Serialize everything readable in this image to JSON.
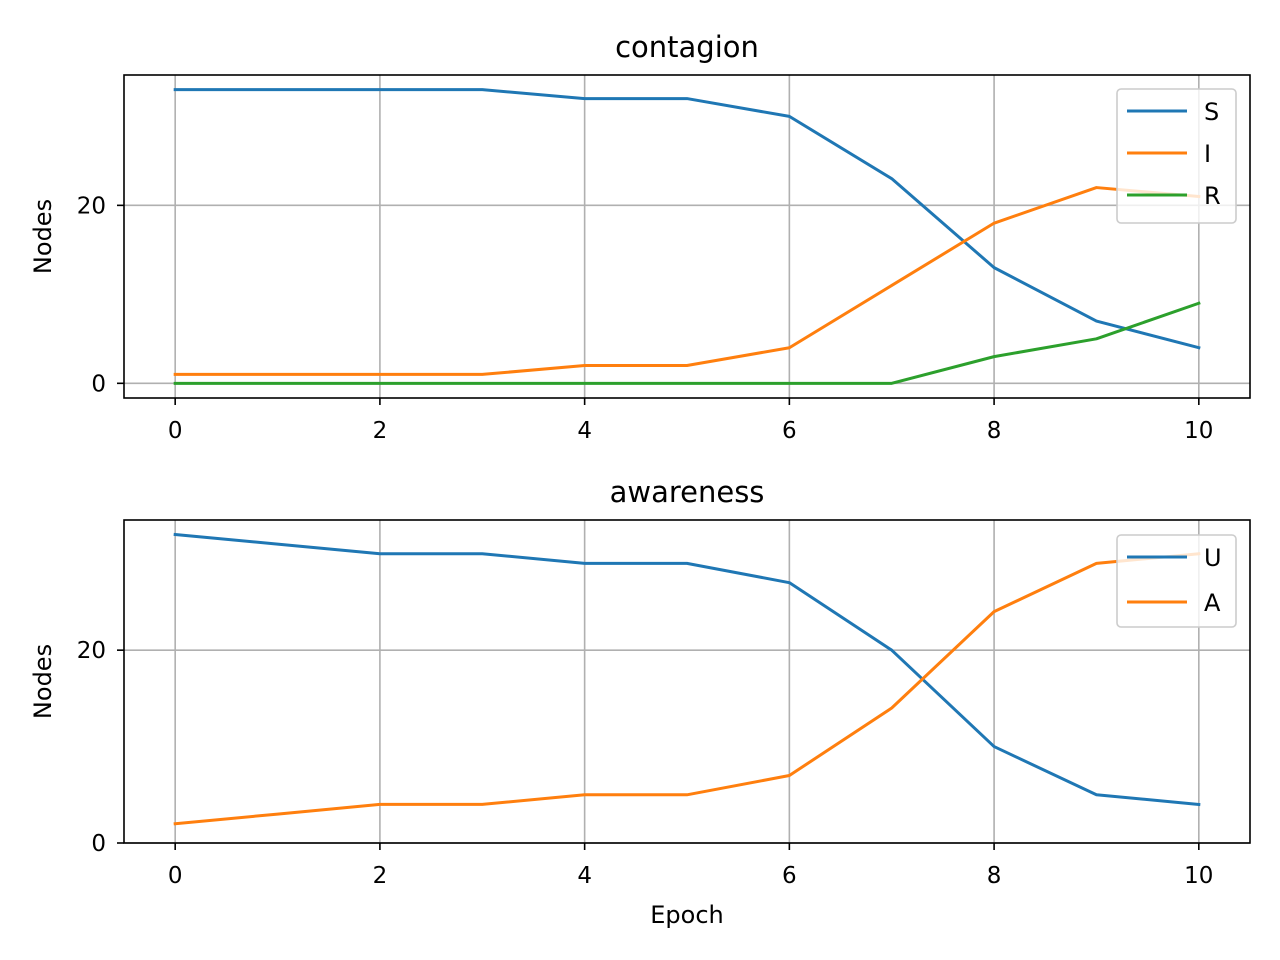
{
  "chart_data": [
    {
      "type": "line",
      "title": "contagion",
      "xlabel": "",
      "ylabel": "Nodes",
      "x": [
        0,
        1,
        2,
        3,
        4,
        5,
        6,
        7,
        8,
        9,
        10
      ],
      "xlim": [
        -0.5,
        10.5
      ],
      "ylim": [
        -1.65,
        34.65
      ],
      "xticks": [
        0,
        2,
        4,
        6,
        8,
        10
      ],
      "yticks": [
        0,
        20
      ],
      "grid": true,
      "legend_position": "upper right",
      "series": [
        {
          "name": "S",
          "color": "#1f77b4",
          "values": [
            33,
            33,
            33,
            33,
            32,
            32,
            30,
            23,
            13,
            7,
            4
          ]
        },
        {
          "name": "I",
          "color": "#ff7f0e",
          "values": [
            1,
            1,
            1,
            1,
            2,
            2,
            4,
            11,
            18,
            22,
            21
          ]
        },
        {
          "name": "R",
          "color": "#2ca02c",
          "values": [
            0,
            0,
            0,
            0,
            0,
            0,
            0,
            0,
            3,
            5,
            9
          ]
        }
      ]
    },
    {
      "type": "line",
      "title": "awareness",
      "xlabel": "Epoch",
      "ylabel": "Nodes",
      "x": [
        0,
        1,
        2,
        3,
        4,
        5,
        6,
        7,
        8,
        9,
        10
      ],
      "xlim": [
        -0.5,
        10.5
      ],
      "ylim": [
        0,
        33.5
      ],
      "xticks": [
        0,
        2,
        4,
        6,
        8,
        10
      ],
      "yticks": [
        0,
        20
      ],
      "grid": true,
      "legend_position": "upper right",
      "series": [
        {
          "name": "U",
          "color": "#1f77b4",
          "values": [
            32,
            31,
            30,
            30,
            29,
            29,
            27,
            20,
            10,
            5,
            4
          ]
        },
        {
          "name": "A",
          "color": "#ff7f0e",
          "values": [
            2,
            3,
            4,
            4,
            5,
            5,
            7,
            14,
            24,
            29,
            30
          ]
        }
      ]
    }
  ]
}
